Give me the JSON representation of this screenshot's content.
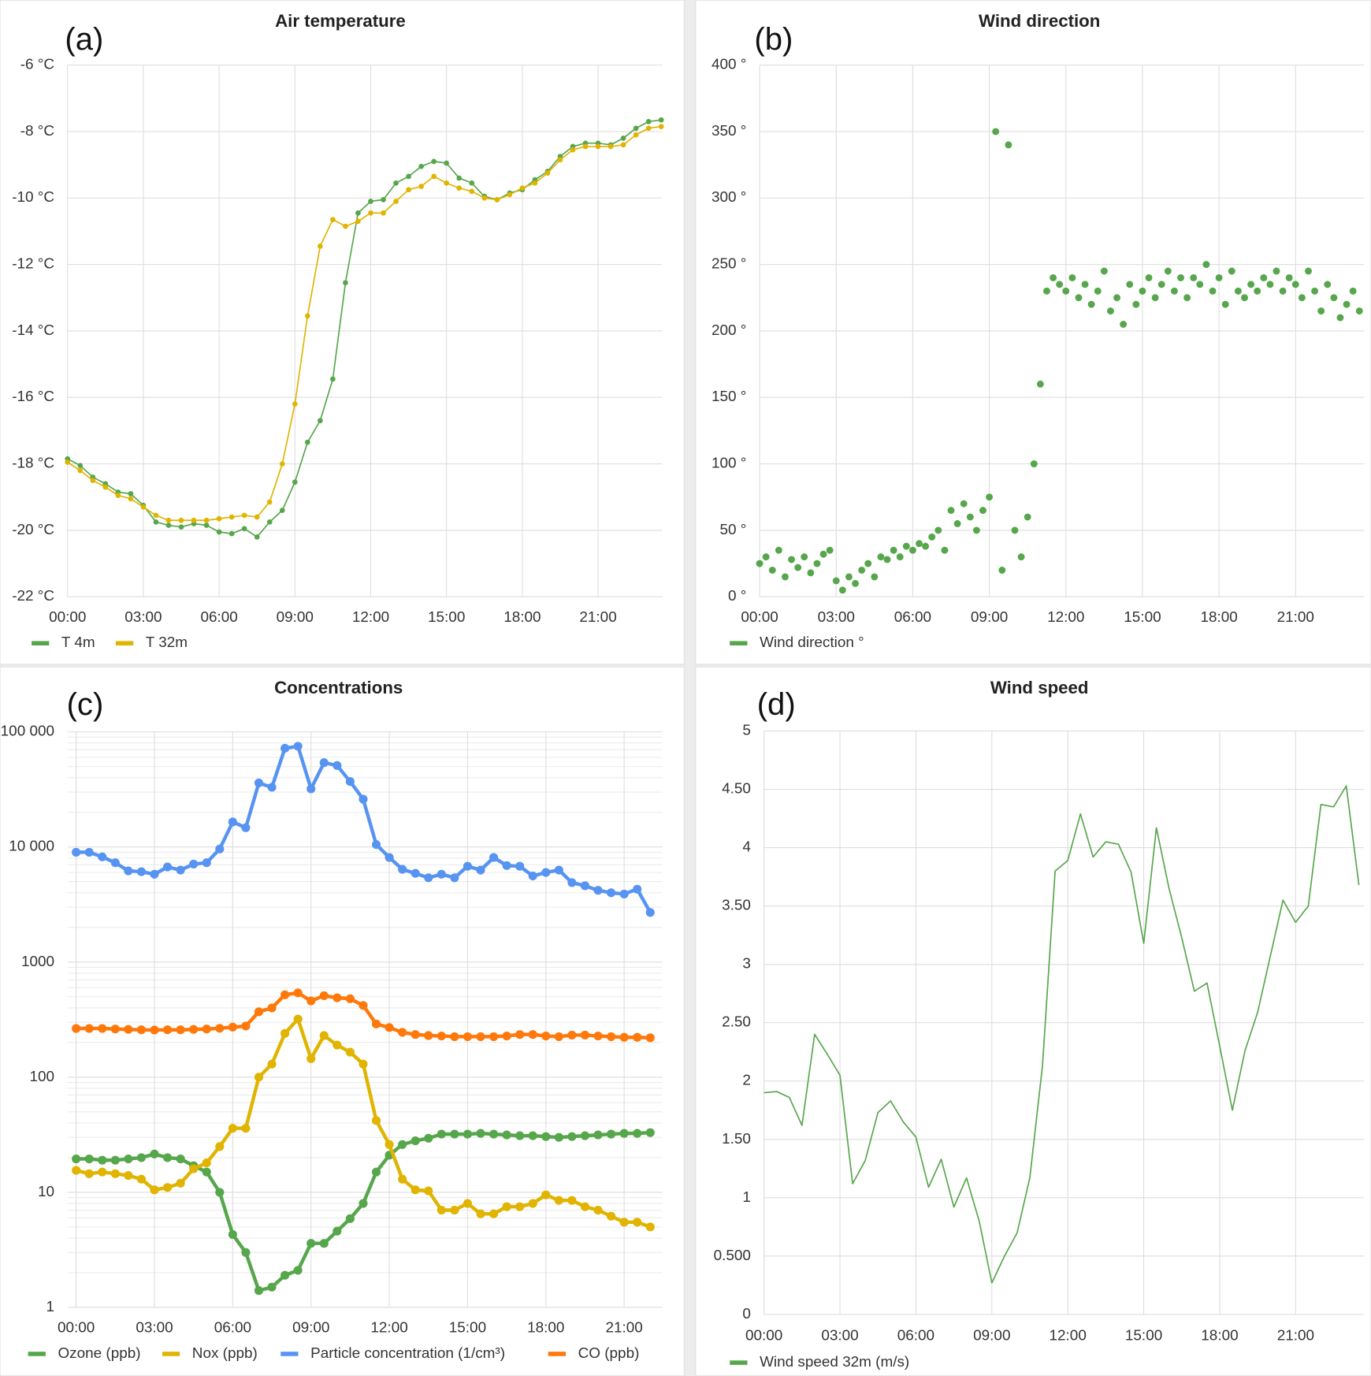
{
  "chart_data": [
    {
      "type": "line",
      "title": "Air temperature",
      "panel_label": "(a)",
      "grid": true,
      "x": [
        0,
        0.5,
        1,
        1.5,
        2,
        2.5,
        3,
        3.5,
        4,
        4.5,
        5,
        5.5,
        6,
        6.5,
        7,
        7.5,
        8,
        8.5,
        9,
        9.5,
        10,
        10.5,
        11,
        11.5,
        12,
        12.5,
        13,
        13.5,
        14,
        14.5,
        15,
        15.5,
        16,
        16.5,
        17,
        17.5,
        18,
        18.5,
        19,
        19.5,
        20,
        20.5,
        21,
        21.5,
        22,
        22.5,
        23,
        23.5
      ],
      "xlim": [
        0,
        23.54
      ],
      "xticks": [
        {
          "value": 0,
          "label": "00:00"
        },
        {
          "value": 3,
          "label": "03:00"
        },
        {
          "value": 6,
          "label": "06:00"
        },
        {
          "value": 9,
          "label": "09:00"
        },
        {
          "value": 12,
          "label": "12:00"
        },
        {
          "value": 15,
          "label": "15:00"
        },
        {
          "value": 18,
          "label": "18:00"
        },
        {
          "value": 21,
          "label": "21:00"
        }
      ],
      "ylim": [
        -22,
        -6
      ],
      "yticks": [
        {
          "value": -22,
          "label": "-22 °C"
        },
        {
          "value": -20,
          "label": "-20 °C"
        },
        {
          "value": -18,
          "label": "-18 °C"
        },
        {
          "value": -16,
          "label": "-16 °C"
        },
        {
          "value": -14,
          "label": "-14 °C"
        },
        {
          "value": -12,
          "label": "-12 °C"
        },
        {
          "value": -10,
          "label": "-10 °C"
        },
        {
          "value": -8,
          "label": "-8 °C"
        },
        {
          "value": -6,
          "label": "-6 °C"
        }
      ],
      "series": [
        {
          "name": "T 4m",
          "color": "#56a64b",
          "values": [
            -17.85,
            -18.05,
            -18.4,
            -18.6,
            -18.85,
            -18.9,
            -19.25,
            -19.75,
            -19.85,
            -19.9,
            -19.8,
            -19.85,
            -20.05,
            -20.1,
            -19.95,
            -20.2,
            -19.75,
            -19.4,
            -18.55,
            -17.35,
            -16.7,
            -15.45,
            -12.55,
            -10.45,
            -10.1,
            -10.05,
            -9.55,
            -9.35,
            -9.05,
            -8.9,
            -8.95,
            -9.4,
            -9.55,
            -9.95,
            -10.05,
            -9.85,
            -9.75,
            -9.45,
            -9.2,
            -8.75,
            -8.45,
            -8.35,
            -8.35,
            -8.4,
            -8.2,
            -7.9,
            -7.7,
            -7.65
          ]
        },
        {
          "name": "T 32m",
          "color": "#e0b400",
          "values": [
            -17.95,
            -18.2,
            -18.5,
            -18.7,
            -18.95,
            -19.05,
            -19.3,
            -19.55,
            -19.7,
            -19.7,
            -19.7,
            -19.7,
            -19.65,
            -19.6,
            -19.55,
            -19.6,
            -19.15,
            -18.0,
            -16.2,
            -13.55,
            -11.45,
            -10.65,
            -10.85,
            -10.7,
            -10.45,
            -10.45,
            -10.1,
            -9.75,
            -9.65,
            -9.35,
            -9.55,
            -9.7,
            -9.8,
            -10.0,
            -10.05,
            -9.9,
            -9.7,
            -9.55,
            -9.25,
            -8.85,
            -8.55,
            -8.45,
            -8.45,
            -8.45,
            -8.4,
            -8.1,
            -7.9,
            -7.85
          ]
        }
      ]
    },
    {
      "type": "scatter",
      "title": "Wind direction",
      "panel_label": "(b)",
      "grid": true,
      "x": [
        0,
        0.25,
        0.5,
        0.75,
        1,
        1.25,
        1.5,
        1.75,
        2,
        2.25,
        2.5,
        2.75,
        3,
        3.25,
        3.5,
        3.75,
        4,
        4.25,
        4.5,
        4.75,
        5,
        5.25,
        5.5,
        5.75,
        6,
        6.25,
        6.5,
        6.75,
        7,
        7.25,
        7.5,
        7.75,
        8,
        8.25,
        8.5,
        8.75,
        9,
        9.25,
        9.5,
        9.75,
        10,
        10.25,
        10.5,
        10.75,
        11,
        11.25,
        11.5,
        11.75,
        12,
        12.25,
        12.5,
        12.75,
        13,
        13.25,
        13.5,
        13.75,
        14,
        14.25,
        14.5,
        14.75,
        15,
        15.25,
        15.5,
        15.75,
        16,
        16.25,
        16.5,
        16.75,
        17,
        17.25,
        17.5,
        17.75,
        18,
        18.25,
        18.5,
        18.75,
        19,
        19.25,
        19.5,
        19.75,
        20,
        20.25,
        20.5,
        20.75,
        21,
        21.25,
        21.5,
        21.75,
        22,
        22.25,
        22.5,
        22.75,
        23,
        23.25,
        23.5
      ],
      "xlim": [
        0,
        23.68
      ],
      "xticks": [
        {
          "value": 0,
          "label": "00:00"
        },
        {
          "value": 3,
          "label": "03:00"
        },
        {
          "value": 6,
          "label": "06:00"
        },
        {
          "value": 9,
          "label": "09:00"
        },
        {
          "value": 12,
          "label": "12:00"
        },
        {
          "value": 15,
          "label": "15:00"
        },
        {
          "value": 18,
          "label": "18:00"
        },
        {
          "value": 21,
          "label": "21:00"
        }
      ],
      "ylim": [
        0,
        400
      ],
      "yticks": [
        {
          "value": 0,
          "label": "0 °"
        },
        {
          "value": 50,
          "label": "50 °"
        },
        {
          "value": 100,
          "label": "100 °"
        },
        {
          "value": 150,
          "label": "150 °"
        },
        {
          "value": 200,
          "label": "200 °"
        },
        {
          "value": 250,
          "label": "250 °"
        },
        {
          "value": 300,
          "label": "300 °"
        },
        {
          "value": 350,
          "label": "350 °"
        },
        {
          "value": 400,
          "label": "400 °"
        }
      ],
      "series": [
        {
          "name": "Wind direction °",
          "color": "#56a64b",
          "values": [
            25,
            30,
            20,
            35,
            15,
            28,
            22,
            30,
            18,
            25,
            32,
            35,
            12,
            5,
            15,
            10,
            20,
            25,
            15,
            30,
            28,
            35,
            30,
            38,
            35,
            40,
            38,
            45,
            50,
            35,
            65,
            55,
            70,
            60,
            50,
            65,
            75,
            350,
            20,
            340,
            50,
            30,
            60,
            100,
            160,
            230,
            240,
            235,
            230,
            240,
            225,
            235,
            220,
            230,
            245,
            215,
            225,
            205,
            235,
            220,
            230,
            240,
            225,
            235,
            245,
            230,
            240,
            225,
            240,
            235,
            250,
            230,
            240,
            220,
            245,
            230,
            225,
            235,
            230,
            240,
            235,
            245,
            230,
            240,
            235,
            225,
            245,
            230,
            215,
            235,
            225,
            210,
            220,
            230,
            215
          ]
        }
      ]
    },
    {
      "type": "line",
      "title": "Concentrations",
      "panel_label": "(c)",
      "grid": true,
      "log": true,
      "x": [
        0,
        0.5,
        1,
        1.5,
        2,
        2.5,
        3,
        3.5,
        4,
        4.5,
        5,
        5.5,
        6,
        6.5,
        7,
        7.5,
        8,
        8.5,
        9,
        9.5,
        10,
        10.5,
        11,
        11.5,
        12,
        12.5,
        13,
        13.5,
        14,
        14.5,
        15,
        15.5,
        16,
        16.5,
        17,
        17.5,
        18,
        18.5,
        19,
        19.5,
        20,
        20.5,
        21,
        21.5,
        22
      ],
      "xlim": [
        -0.33,
        22.46
      ],
      "xticks": [
        {
          "value": 0,
          "label": "00:00"
        },
        {
          "value": 3,
          "label": "03:00"
        },
        {
          "value": 6,
          "label": "06:00"
        },
        {
          "value": 9,
          "label": "09:00"
        },
        {
          "value": 12,
          "label": "12:00"
        },
        {
          "value": 15,
          "label": "15:00"
        },
        {
          "value": 18,
          "label": "18:00"
        },
        {
          "value": 21,
          "label": "21:00"
        }
      ],
      "ylim": [
        1,
        100000
      ],
      "yticks": [
        1,
        10,
        100,
        1000,
        {
          "value": 10000,
          "label": "10 000"
        },
        {
          "value": 100000,
          "label": "100 000"
        }
      ],
      "series": [
        {
          "name": "Ozone (ppb)",
          "color": "#56a64b",
          "values": [
            19.5,
            19.5,
            19,
            19,
            19.5,
            20,
            21.5,
            20,
            19.5,
            17,
            15,
            10,
            4.3,
            3,
            1.4,
            1.5,
            1.9,
            2.1,
            3.6,
            3.6,
            4.6,
            5.9,
            8,
            15,
            21,
            26,
            28,
            29.5,
            32,
            32,
            32,
            32.5,
            32,
            31.5,
            31,
            31,
            30.5,
            30,
            30.5,
            31,
            31.5,
            32,
            32.5,
            32.5,
            33
          ]
        },
        {
          "name": "Nox (ppb)",
          "color": "#e0b400",
          "values": [
            15.5,
            14.5,
            15,
            14.5,
            14,
            13,
            10.5,
            11,
            12,
            16,
            18,
            25,
            36,
            36,
            100,
            130,
            240,
            320,
            145,
            230,
            190,
            165,
            130,
            42,
            26,
            13,
            10.5,
            10.3,
            7,
            7,
            8,
            6.5,
            6.5,
            7.5,
            7.5,
            8,
            9.5,
            8.5,
            8.5,
            7.5,
            7,
            6.2,
            5.5,
            5.5,
            5
          ]
        },
        {
          "name": "Particle concentration (1/cm³)",
          "color": "#5794f2",
          "values": [
            9000,
            9000,
            8200,
            7300,
            6200,
            6100,
            5800,
            6700,
            6300,
            7100,
            7300,
            9600,
            16500,
            14700,
            36000,
            33000,
            72000,
            75000,
            32000,
            54000,
            51000,
            37000,
            26000,
            10500,
            8100,
            6400,
            5900,
            5400,
            5800,
            5400,
            6800,
            6300,
            8100,
            6900,
            6800,
            5600,
            6000,
            6300,
            4900,
            4600,
            4200,
            4000,
            3900,
            4300,
            2700
          ]
        },
        {
          "name": "CO (ppb)",
          "color": "#ff780a",
          "values": [
            265,
            265,
            265,
            262,
            260,
            258,
            257,
            258,
            258,
            260,
            262,
            266,
            272,
            278,
            370,
            400,
            520,
            540,
            460,
            510,
            490,
            480,
            420,
            290,
            270,
            245,
            235,
            230,
            228,
            225,
            225,
            225,
            225,
            228,
            235,
            235,
            228,
            225,
            232,
            232,
            228,
            225,
            222,
            222,
            220
          ]
        }
      ]
    },
    {
      "type": "line",
      "title": "Wind speed",
      "panel_label": "(d)",
      "grid": true,
      "x": [
        0,
        0.5,
        1,
        1.5,
        2,
        2.5,
        3,
        3.5,
        4,
        4.5,
        5,
        5.5,
        6,
        6.5,
        7,
        7.5,
        8,
        8.5,
        9,
        9.5,
        10,
        10.5,
        11,
        11.5,
        12,
        12.5,
        13,
        13.5,
        14,
        14.5,
        15,
        15.5,
        16,
        16.5,
        17,
        17.5,
        18,
        18.5,
        19,
        19.5,
        20,
        20.5,
        21,
        21.5,
        22,
        22.5,
        23,
        23.5
      ],
      "xlim": [
        0,
        23.7
      ],
      "xticks": [
        {
          "value": 0,
          "label": "00:00"
        },
        {
          "value": 3,
          "label": "03:00"
        },
        {
          "value": 6,
          "label": "06:00"
        },
        {
          "value": 9,
          "label": "09:00"
        },
        {
          "value": 12,
          "label": "12:00"
        },
        {
          "value": 15,
          "label": "15:00"
        },
        {
          "value": 18,
          "label": "18:00"
        },
        {
          "value": 21,
          "label": "21:00"
        }
      ],
      "ylim": [
        0,
        5
      ],
      "yticks": [
        0,
        {
          "value": 0.5,
          "label": "0.500"
        },
        1,
        {
          "value": 1.5,
          "label": "1.50"
        },
        2,
        {
          "value": 2.5,
          "label": "2.50"
        },
        3,
        {
          "value": 3.5,
          "label": "3.50"
        },
        4,
        {
          "value": 4.5,
          "label": "4.50"
        },
        5
      ],
      "series": [
        {
          "name": "Wind speed 32m (m/s)",
          "color": "#56a64b",
          "values": [
            1.9,
            1.91,
            1.86,
            1.62,
            2.4,
            2.23,
            2.05,
            1.12,
            1.32,
            1.73,
            1.83,
            1.65,
            1.52,
            1.09,
            1.33,
            0.92,
            1.17,
            0.8,
            0.27,
            0.5,
            0.7,
            1.17,
            2.13,
            3.8,
            3.89,
            4.29,
            3.92,
            4.05,
            4.03,
            3.79,
            3.18,
            4.17,
            3.65,
            3.23,
            2.77,
            2.84,
            2.3,
            1.75,
            2.26,
            2.59,
            3.07,
            3.55,
            3.36,
            3.5,
            4.37,
            4.35,
            4.53,
            3.68
          ]
        }
      ]
    }
  ]
}
